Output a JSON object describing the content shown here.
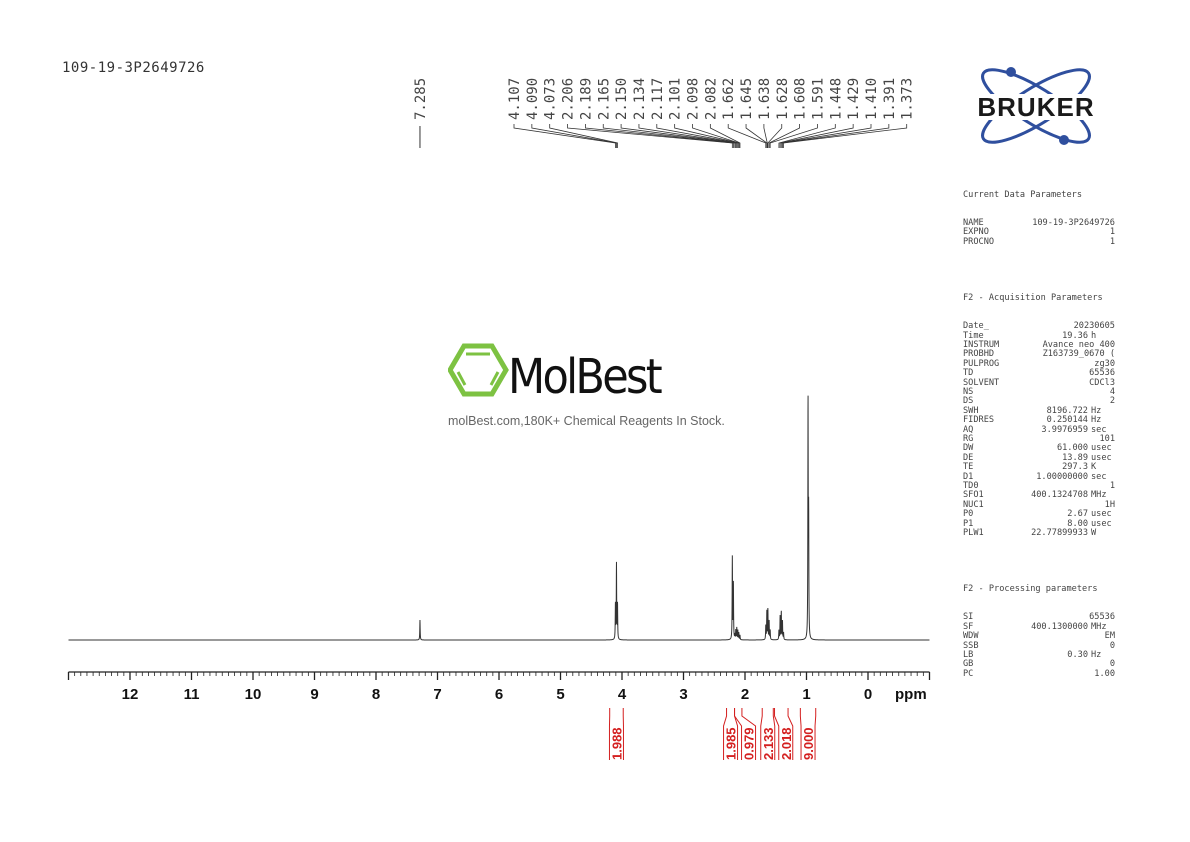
{
  "sample_name": "109-19-3P2649726",
  "logo": {
    "brand": "BRUKER",
    "colors": {
      "orbit": "#2f4f9e",
      "text": "#1a1a1a",
      "dot": "#2f4f9e"
    }
  },
  "watermark": {
    "brand": "MolBest",
    "tagline": "molBest.com,180K+ Chemical Reagents In Stock.",
    "color": "#7dc242"
  },
  "parameters": {
    "current_title": "Current Data Parameters",
    "current": [
      [
        "NAME",
        "109-19-3P2649726",
        ""
      ],
      [
        "EXPNO",
        "1",
        ""
      ],
      [
        "PROCNO",
        "1",
        ""
      ]
    ],
    "acq_title": "F2 - Acquisition Parameters",
    "acq": [
      [
        "Date_",
        "20230605",
        ""
      ],
      [
        "Time",
        "19.36",
        "h"
      ],
      [
        "INSTRUM",
        "Avance neo 400",
        ""
      ],
      [
        "PROBHD",
        "Z163739_0670 (",
        ""
      ],
      [
        "PULPROG",
        "zg30",
        ""
      ],
      [
        "TD",
        "65536",
        ""
      ],
      [
        "SOLVENT",
        "CDCl3",
        ""
      ],
      [
        "NS",
        "4",
        ""
      ],
      [
        "DS",
        "2",
        ""
      ],
      [
        "SWH",
        "8196.722",
        "Hz"
      ],
      [
        "FIDRES",
        "0.250144",
        "Hz"
      ],
      [
        "AQ",
        "3.9976959",
        "sec"
      ],
      [
        "RG",
        "101",
        ""
      ],
      [
        "DW",
        "61.000",
        "usec"
      ],
      [
        "DE",
        "13.89",
        "usec"
      ],
      [
        "TE",
        "297.3",
        "K"
      ],
      [
        "D1",
        "1.00000000",
        "sec"
      ],
      [
        "TD0",
        "1",
        ""
      ],
      [
        "SFO1",
        "400.1324708",
        "MHz"
      ],
      [
        "NUC1",
        "1H",
        ""
      ],
      [
        "P0",
        "2.67",
        "usec"
      ],
      [
        "P1",
        "8.00",
        "usec"
      ],
      [
        "PLW1",
        "22.77899933",
        "W"
      ]
    ],
    "proc_title": "F2 - Processing parameters",
    "proc": [
      [
        "SI",
        "65536",
        ""
      ],
      [
        "SF",
        "400.1300000",
        "MHz"
      ],
      [
        "WDW",
        "EM",
        ""
      ],
      [
        "SSB",
        "0",
        ""
      ],
      [
        "LB",
        "0.30",
        "Hz"
      ],
      [
        "GB",
        "0",
        ""
      ],
      [
        "PC",
        "1.00",
        ""
      ]
    ]
  },
  "chart_data": {
    "type": "line",
    "xlabel": "ppm",
    "xlim": [
      13,
      -1
    ],
    "x_reversed": true,
    "x_ticks": [
      "12",
      "11",
      "10",
      "9",
      "8",
      "7",
      "6",
      "5",
      "4",
      "3",
      "2",
      "1",
      "0"
    ],
    "grid": false,
    "line_color": "#333333",
    "integral_color": "#d42020",
    "peak_labels_single": [
      "7.285"
    ],
    "peak_labels_group": [
      "4.107",
      "4.090",
      "4.073",
      "2.206",
      "2.189",
      "2.165",
      "2.150",
      "2.134",
      "2.117",
      "2.101",
      "2.098",
      "2.082",
      "1.662",
      "1.645",
      "1.638",
      "1.628",
      "1.608",
      "1.591",
      "1.448",
      "1.429",
      "1.410",
      "1.391",
      "1.373"
    ],
    "peaks": [
      {
        "ppm": 7.285,
        "height": 8.5
      },
      {
        "ppm": 4.107,
        "height": 15
      },
      {
        "ppm": 4.09,
        "height": 32
      },
      {
        "ppm": 4.073,
        "height": 15
      },
      {
        "ppm": 2.206,
        "height": 35
      },
      {
        "ppm": 2.189,
        "height": 24
      },
      {
        "ppm": 2.165,
        "height": 2
      },
      {
        "ppm": 2.15,
        "height": 4
      },
      {
        "ppm": 2.134,
        "height": 5
      },
      {
        "ppm": 2.117,
        "height": 4
      },
      {
        "ppm": 2.101,
        "height": 3
      },
      {
        "ppm": 2.082,
        "height": 2
      },
      {
        "ppm": 1.662,
        "height": 6
      },
      {
        "ppm": 1.645,
        "height": 12
      },
      {
        "ppm": 1.628,
        "height": 13
      },
      {
        "ppm": 1.608,
        "height": 8
      },
      {
        "ppm": 1.591,
        "height": 4
      },
      {
        "ppm": 1.448,
        "height": 4
      },
      {
        "ppm": 1.429,
        "height": 10
      },
      {
        "ppm": 1.41,
        "height": 12
      },
      {
        "ppm": 1.391,
        "height": 8
      },
      {
        "ppm": 1.373,
        "height": 3
      },
      {
        "ppm": 0.975,
        "height": 100
      },
      {
        "ppm": 0.965,
        "height": 50
      }
    ],
    "integrals": [
      {
        "from": 4.2,
        "to": 3.98,
        "value": "1.988"
      },
      {
        "from": 2.3,
        "to": 2.17,
        "value": "1.985"
      },
      {
        "from": 2.17,
        "to": 2.05,
        "value": "0.979"
      },
      {
        "from": 1.72,
        "to": 1.54,
        "value": "2.133"
      },
      {
        "from": 1.52,
        "to": 1.3,
        "value": "2.018"
      },
      {
        "from": 1.1,
        "to": 0.85,
        "value": "9.000"
      }
    ]
  }
}
